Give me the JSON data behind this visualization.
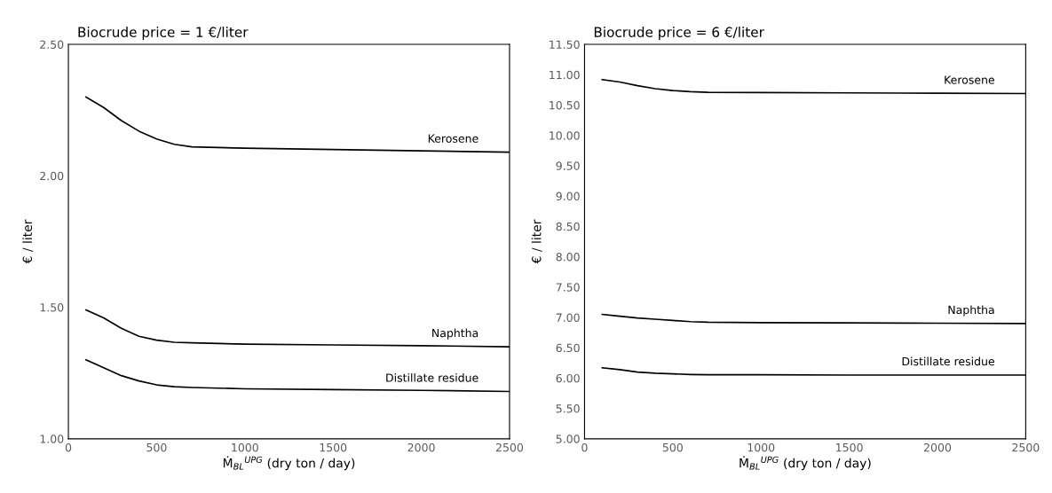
{
  "chart_data": [
    {
      "type": "line",
      "title": "Biocrude price = 1 €/liter",
      "xlabel": "Ṁ$_{BL}$$^{UPG}$ (dry ton / day)",
      "ylabel": "€ / liter",
      "xlim": [
        0,
        2500
      ],
      "xticks": [
        0,
        500,
        1000,
        1500,
        2000,
        2500
      ],
      "ylim": [
        1.0,
        2.5
      ],
      "yticks": [
        {
          "value": 1.0,
          "label": "1.00"
        },
        {
          "value": 1.5,
          "label": "1.50"
        },
        {
          "value": 2.0,
          "label": "2.00"
        },
        {
          "value": 2.5,
          "label": "2.50"
        }
      ],
      "grid": false,
      "legend": false,
      "marker": "none",
      "line_style": "solid",
      "x": [
        100,
        200,
        300,
        400,
        500,
        600,
        700,
        1000,
        1500,
        2000,
        2500
      ],
      "series": [
        {
          "name": "Kerosene",
          "color": "#000000",
          "values": [
            2.3,
            2.26,
            2.21,
            2.17,
            2.14,
            2.12,
            2.11,
            2.105,
            2.1,
            2.095,
            2.09
          ]
        },
        {
          "name": "Naphtha",
          "color": "#000000",
          "values": [
            1.49,
            1.46,
            1.42,
            1.39,
            1.375,
            1.367,
            1.365,
            1.36,
            1.357,
            1.354,
            1.35
          ]
        },
        {
          "name": "Distillate residue",
          "color": "#000000",
          "values": [
            1.3,
            1.27,
            1.24,
            1.22,
            1.205,
            1.198,
            1.195,
            1.19,
            1.187,
            1.184,
            1.18
          ]
        }
      ]
    },
    {
      "type": "line",
      "title": "Biocrude price = 6 €/liter",
      "xlabel": "Ṁ$_{BL}$$^{UPG}$ (dry ton / day)",
      "ylabel": "€ / liter",
      "xlim": [
        0,
        2500
      ],
      "xticks": [
        0,
        500,
        1000,
        1500,
        2000,
        2500
      ],
      "ylim": [
        5.0,
        11.5
      ],
      "yticks": [
        {
          "value": 5.0,
          "label": "5.00"
        },
        {
          "value": 5.5,
          "label": "5.50"
        },
        {
          "value": 6.0,
          "label": "6.00"
        },
        {
          "value": 6.5,
          "label": "6.50"
        },
        {
          "value": 7.0,
          "label": "7.00"
        },
        {
          "value": 7.5,
          "label": "7.50"
        },
        {
          "value": 8.0,
          "label": "8.00"
        },
        {
          "value": 8.5,
          "label": "8.50"
        },
        {
          "value": 9.0,
          "label": "9.00"
        },
        {
          "value": 9.5,
          "label": "9.50"
        },
        {
          "value": 10.0,
          "label": "10.00"
        },
        {
          "value": 10.5,
          "label": "10.50"
        },
        {
          "value": 11.0,
          "label": "11.00"
        },
        {
          "value": 11.5,
          "label": "11.50"
        }
      ],
      "grid": false,
      "legend": false,
      "marker": "none",
      "line_style": "solid",
      "x": [
        100,
        200,
        300,
        400,
        500,
        600,
        700,
        1000,
        1500,
        2000,
        2500
      ],
      "series": [
        {
          "name": "Kerosene",
          "color": "#000000",
          "values": [
            10.92,
            10.88,
            10.82,
            10.77,
            10.74,
            10.72,
            10.71,
            10.705,
            10.7,
            10.695,
            10.69
          ]
        },
        {
          "name": "Naphtha",
          "color": "#000000",
          "values": [
            7.05,
            7.02,
            6.99,
            6.97,
            6.95,
            6.93,
            6.92,
            6.915,
            6.91,
            6.905,
            6.9
          ]
        },
        {
          "name": "Distillate residue",
          "color": "#000000",
          "values": [
            6.17,
            6.14,
            6.1,
            6.08,
            6.07,
            6.06,
            6.055,
            6.055,
            6.05,
            6.05,
            6.05
          ]
        }
      ]
    }
  ]
}
